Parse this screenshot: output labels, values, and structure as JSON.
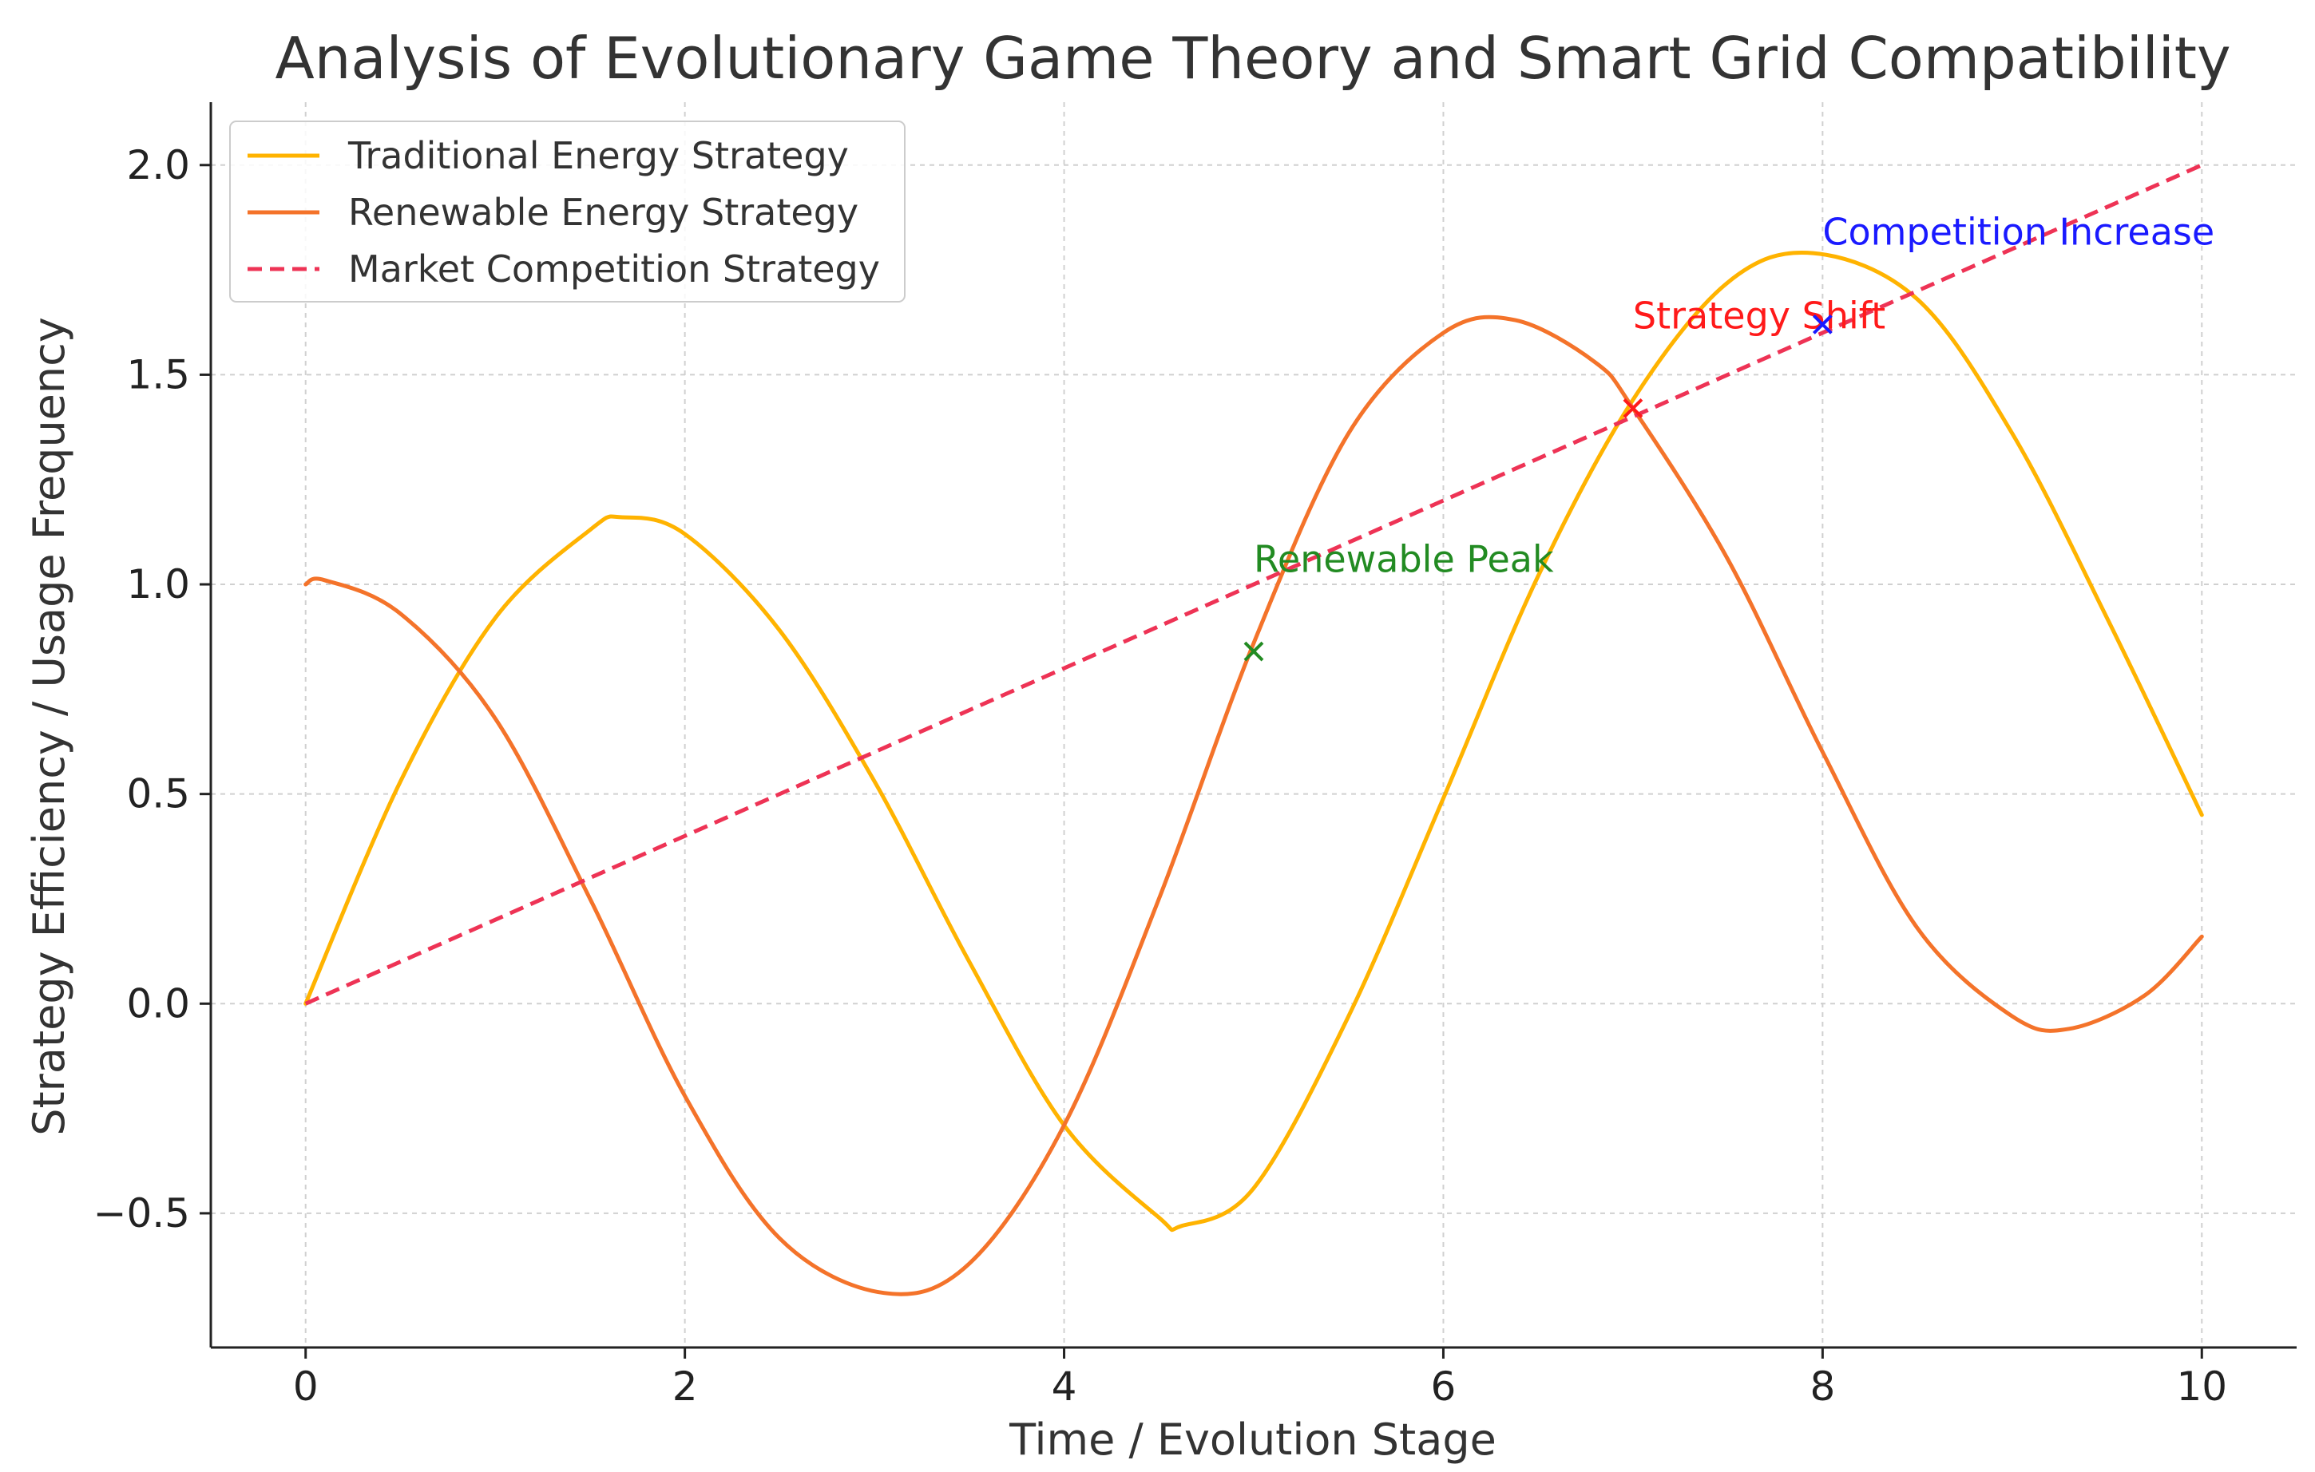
{
  "chart_data": {
    "type": "line",
    "title": "Analysis of Evolutionary Game Theory and Smart Grid Compatibility",
    "xlabel": "Time / Evolution Stage",
    "ylabel": "Strategy Efficiency / Usage Frequency",
    "xlim": [
      -0.5,
      10.5
    ],
    "ylim": [
      -0.82,
      2.15
    ],
    "xticks": [
      0,
      2,
      4,
      6,
      8,
      10
    ],
    "xtick_labels": [
      "0",
      "2",
      "4",
      "6",
      "8",
      "10"
    ],
    "yticks": [
      -0.5,
      0.0,
      0.5,
      1.0,
      1.5,
      2.0
    ],
    "ytick_labels": [
      "−0.5",
      "0.0",
      "0.5",
      "1.0",
      "1.5",
      "2.0"
    ],
    "grid": true,
    "legend_position": "top-left",
    "series": [
      {
        "name": "Traditional Energy Strategy",
        "color": "#FFB300",
        "dash": "solid",
        "x": [
          0,
          0.5,
          1.0,
          1.5,
          1.67,
          2.0,
          2.5,
          3.0,
          3.5,
          4.0,
          4.5,
          4.62,
          5.0,
          5.5,
          6.0,
          6.5,
          7.0,
          7.5,
          7.95,
          8.5,
          9.0,
          9.5,
          10.0
        ],
        "values": [
          0.0,
          0.53,
          0.92,
          1.13,
          1.16,
          1.12,
          0.89,
          0.53,
          0.1,
          -0.29,
          -0.51,
          -0.53,
          -0.44,
          -0.03,
          0.49,
          1.02,
          1.44,
          1.72,
          1.79,
          1.68,
          1.36,
          0.92,
          0.45
        ]
      },
      {
        "name": "Renewable Energy Strategy",
        "color": "#F4732A",
        "dash": "solid",
        "x": [
          0,
          0.1,
          0.5,
          1.0,
          1.5,
          2.0,
          2.5,
          3.05,
          3.5,
          4.0,
          4.5,
          5.0,
          5.5,
          6.0,
          6.38,
          6.8,
          7.0,
          7.5,
          8.0,
          8.5,
          9.0,
          9.3,
          9.7,
          10.0
        ],
        "values": [
          1.0,
          1.01,
          0.93,
          0.68,
          0.25,
          -0.22,
          -0.56,
          -0.69,
          -0.62,
          -0.29,
          0.25,
          0.86,
          1.36,
          1.6,
          1.63,
          1.53,
          1.42,
          1.06,
          0.6,
          0.18,
          -0.03,
          -0.06,
          0.02,
          0.16
        ]
      },
      {
        "name": "Market Competition Strategy",
        "color": "#EE3355",
        "dash": "dashed",
        "x": [
          0,
          10
        ],
        "values": [
          0.0,
          2.0
        ]
      }
    ],
    "annotations": [
      {
        "label": "Renewable Peak",
        "x": 5.0,
        "y": 0.84,
        "text_x": 5.0,
        "text_y": 1.03,
        "color": "#228B22"
      },
      {
        "label": "Strategy Shift",
        "x": 7.0,
        "y": 1.42,
        "text_x": 7.0,
        "text_y": 1.61,
        "color": "#FF1A1A"
      },
      {
        "label": "Competition Increase",
        "x": 8.0,
        "y": 1.62,
        "text_x": 8.0,
        "text_y": 1.81,
        "color": "#1A1AFF"
      }
    ]
  }
}
